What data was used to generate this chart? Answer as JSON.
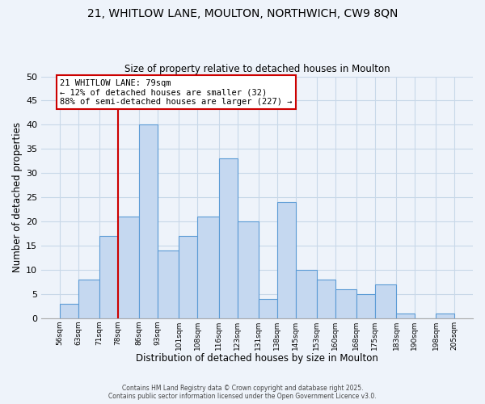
{
  "title_line1": "21, WHITLOW LANE, MOULTON, NORTHWICH, CW9 8QN",
  "title_line2": "Size of property relative to detached houses in Moulton",
  "xlabel": "Distribution of detached houses by size in Moulton",
  "ylabel": "Number of detached properties",
  "bar_left_edges": [
    56,
    63,
    71,
    78,
    86,
    93,
    101,
    108,
    116,
    123,
    131,
    138,
    145,
    153,
    160,
    168,
    175,
    183,
    190,
    198
  ],
  "bar_widths": [
    7,
    8,
    7,
    8,
    7,
    8,
    7,
    8,
    7,
    8,
    7,
    7,
    8,
    7,
    8,
    7,
    8,
    7,
    8,
    7
  ],
  "bar_heights": [
    3,
    8,
    17,
    21,
    40,
    14,
    17,
    21,
    33,
    20,
    4,
    24,
    10,
    8,
    6,
    5,
    7,
    1,
    0,
    1
  ],
  "tick_labels": [
    "56sqm",
    "63sqm",
    "71sqm",
    "78sqm",
    "86sqm",
    "93sqm",
    "101sqm",
    "108sqm",
    "116sqm",
    "123sqm",
    "131sqm",
    "138sqm",
    "145sqm",
    "153sqm",
    "160sqm",
    "168sqm",
    "175sqm",
    "183sqm",
    "190sqm",
    "198sqm",
    "205sqm"
  ],
  "tick_positions": [
    56,
    63,
    71,
    78,
    86,
    93,
    101,
    108,
    116,
    123,
    131,
    138,
    145,
    153,
    160,
    168,
    175,
    183,
    190,
    198,
    205
  ],
  "bar_color": "#c5d8f0",
  "bar_edge_color": "#5b9bd5",
  "vline_x": 78,
  "vline_color": "#cc0000",
  "ylim": [
    0,
    50
  ],
  "yticks": [
    0,
    5,
    10,
    15,
    20,
    25,
    30,
    35,
    40,
    45,
    50
  ],
  "xlim": [
    49,
    212
  ],
  "annotation_title": "21 WHITLOW LANE: 79sqm",
  "annotation_line1": "← 12% of detached houses are smaller (32)",
  "annotation_line2": "88% of semi-detached houses are larger (227) →",
  "annotation_box_color": "#ffffff",
  "annotation_box_edge": "#cc0000",
  "grid_color": "#c8d8e8",
  "bg_color": "#eef3fa",
  "footer1": "Contains HM Land Registry data © Crown copyright and database right 2025.",
  "footer2": "Contains public sector information licensed under the Open Government Licence v3.0."
}
